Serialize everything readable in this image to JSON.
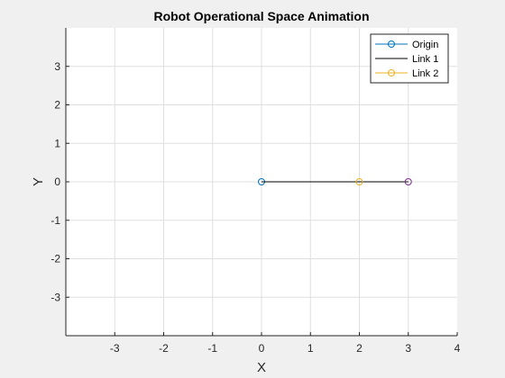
{
  "chart_data": {
    "type": "line",
    "title": "Robot Operational Space Animation",
    "xlabel": "X",
    "ylabel": "Y",
    "xlim": [
      -4,
      4
    ],
    "ylim": [
      -4,
      4
    ],
    "xticks": [
      -3,
      -2,
      -1,
      0,
      1,
      2,
      3,
      4
    ],
    "yticks": [
      -3,
      -2,
      -1,
      0,
      1,
      2,
      3
    ],
    "grid": true,
    "legend_position": "top-right",
    "series": [
      {
        "name": "Origin",
        "color": "#0072bd",
        "x": [
          0
        ],
        "y": [
          0
        ],
        "marker": "circle",
        "line": true
      },
      {
        "name": "Link 1",
        "color": "#000000",
        "x": [
          0,
          3
        ],
        "y": [
          0,
          0
        ],
        "marker": "none",
        "line": true
      },
      {
        "name": "Link 2",
        "color": "#edb120",
        "x": [
          2
        ],
        "y": [
          0
        ],
        "marker": "circle",
        "line": true
      }
    ],
    "extra_points": [
      {
        "color": "#7e2f8e",
        "x": 3,
        "y": 0,
        "marker": "circle"
      }
    ]
  },
  "colors": {
    "figure_background": "#f0f0f0",
    "axes_background": "#ffffff",
    "axis_color": "#262626",
    "grid_color": "#dfdfdf"
  }
}
